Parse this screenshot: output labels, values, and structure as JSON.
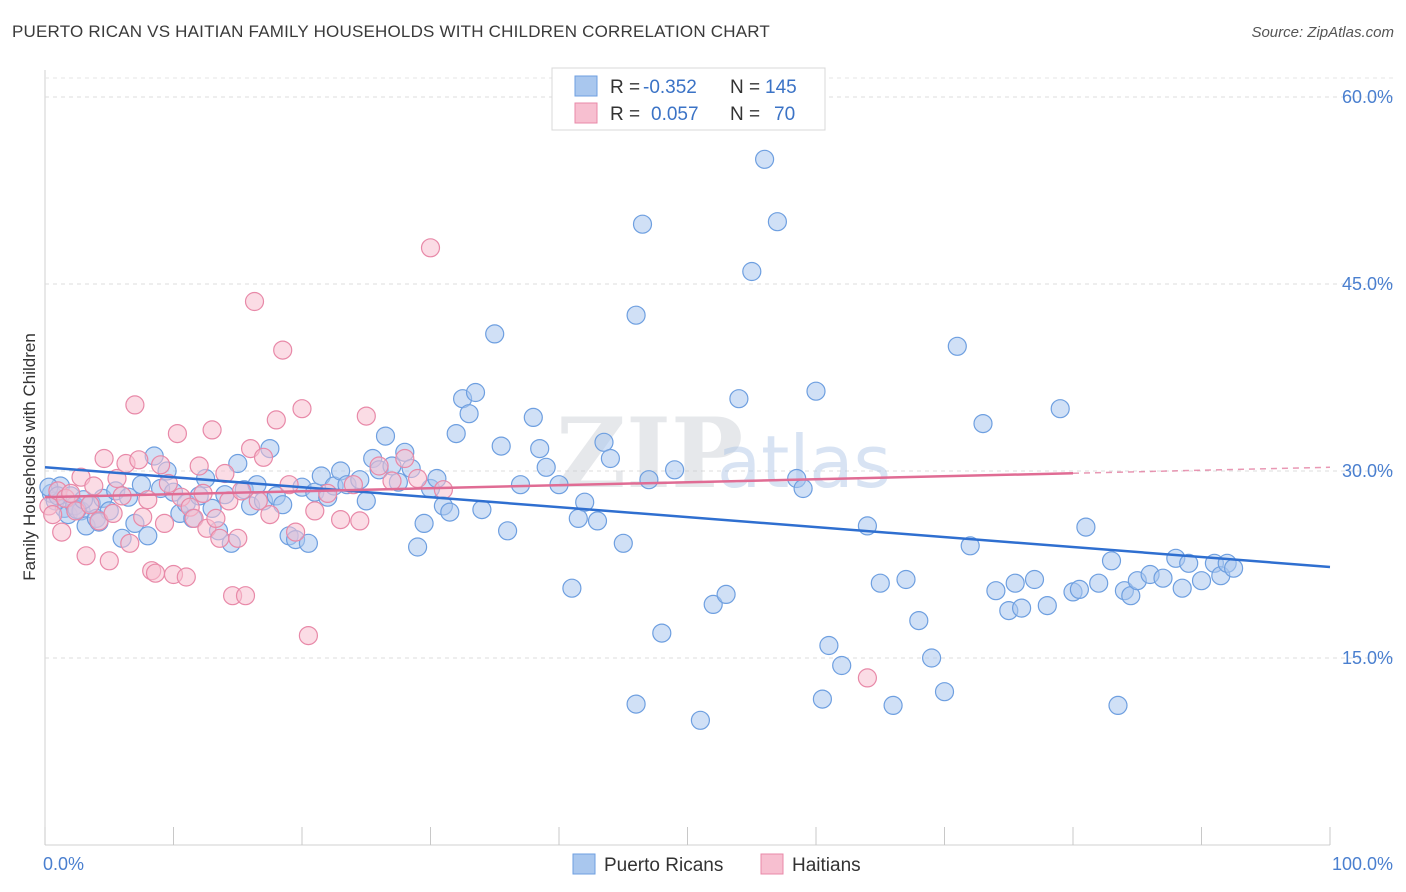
{
  "title": "PUERTO RICAN VS HAITIAN FAMILY HOUSEHOLDS WITH CHILDREN CORRELATION CHART",
  "source": "Source: ZipAtlas.com",
  "watermark": {
    "part1": "ZIP",
    "part2": "atlas"
  },
  "legend_box": {
    "rows": [
      {
        "r_label": "R =",
        "r_value": "-0.352",
        "n_label": "N =",
        "n_value": "145",
        "color": "#a9c7ee",
        "stroke": "#6e9fe0"
      },
      {
        "r_label": "R =",
        "r_value": "0.057",
        "n_label": "N =",
        "n_value": "70",
        "color": "#f7bfd0",
        "stroke": "#e889a8"
      }
    ]
  },
  "bottom_legend": [
    {
      "label": "Puerto Ricans",
      "color": "#a9c7ee",
      "stroke": "#6e9fe0"
    },
    {
      "label": "Haitians",
      "color": "#f7bfd0",
      "stroke": "#e889a8"
    }
  ],
  "chart_data": {
    "type": "scatter",
    "xlabel": "",
    "ylabel": "Family Households with Children",
    "xlim": [
      0,
      100
    ],
    "ylim": [
      0,
      60
    ],
    "x_tick_labels": [
      "0.0%",
      "100.0%"
    ],
    "y_ticks": [
      15,
      30,
      45,
      60
    ],
    "y_tick_labels": [
      "15.0%",
      "30.0%",
      "45.0%",
      "60.0%"
    ],
    "grid": true,
    "series": [
      {
        "name": "Puerto Ricans",
        "color": "#6e9fe0",
        "fill": "#a9c7ee",
        "trend": {
          "x": [
            0,
            100
          ],
          "y": [
            30.3,
            22.3
          ],
          "color": "#2f6fd0",
          "dashed_from": null
        },
        "points": [
          [
            0.5,
            28.2
          ],
          [
            0.8,
            27.6
          ],
          [
            1.2,
            28.8
          ],
          [
            1.5,
            27.0
          ],
          [
            1.8,
            26.5
          ],
          [
            2.0,
            28.0
          ],
          [
            2.3,
            27.2
          ],
          [
            2.8,
            26.8
          ],
          [
            3.2,
            25.6
          ],
          [
            3.6,
            27.4
          ],
          [
            4.0,
            26.2
          ],
          [
            4.5,
            27.8
          ],
          [
            5.0,
            26.8
          ],
          [
            5.5,
            28.4
          ],
          [
            6.0,
            24.6
          ],
          [
            6.5,
            27.9
          ],
          [
            7.0,
            25.8
          ],
          [
            7.5,
            28.9
          ],
          [
            8.0,
            24.8
          ],
          [
            8.5,
            31.2
          ],
          [
            9.0,
            28.6
          ],
          [
            9.5,
            30.0
          ],
          [
            10.0,
            28.3
          ],
          [
            10.5,
            26.6
          ],
          [
            11.0,
            27.4
          ],
          [
            11.5,
            26.2
          ],
          [
            12.0,
            28.0
          ],
          [
            12.5,
            29.4
          ],
          [
            13.0,
            27.0
          ],
          [
            13.5,
            25.2
          ],
          [
            14.0,
            28.1
          ],
          [
            14.5,
            24.2
          ],
          [
            15.0,
            30.6
          ],
          [
            15.5,
            28.5
          ],
          [
            16.0,
            27.2
          ],
          [
            16.5,
            28.9
          ],
          [
            17.0,
            27.6
          ],
          [
            17.5,
            31.8
          ],
          [
            18.0,
            28.0
          ],
          [
            18.5,
            27.3
          ],
          [
            19.0,
            24.8
          ],
          [
            19.5,
            24.5
          ],
          [
            20.0,
            28.7
          ],
          [
            20.5,
            24.2
          ],
          [
            21.0,
            28.3
          ],
          [
            21.5,
            29.6
          ],
          [
            22.0,
            27.9
          ],
          [
            22.5,
            28.8
          ],
          [
            23.0,
            30.0
          ],
          [
            23.5,
            28.9
          ],
          [
            24.5,
            29.3
          ],
          [
            25.0,
            27.6
          ],
          [
            25.5,
            31.0
          ],
          [
            26.0,
            30.1
          ],
          [
            26.5,
            32.8
          ],
          [
            27.0,
            30.4
          ],
          [
            27.5,
            29.1
          ],
          [
            28.0,
            31.5
          ],
          [
            28.5,
            30.2
          ],
          [
            29.0,
            23.9
          ],
          [
            29.5,
            25.8
          ],
          [
            30.0,
            28.6
          ],
          [
            30.5,
            29.4
          ],
          [
            31.0,
            27.2
          ],
          [
            31.5,
            26.7
          ],
          [
            32.0,
            33.0
          ],
          [
            32.5,
            35.8
          ],
          [
            33.0,
            34.6
          ],
          [
            33.5,
            36.3
          ],
          [
            34.0,
            26.9
          ],
          [
            35.0,
            41.0
          ],
          [
            35.5,
            32.0
          ],
          [
            36.0,
            25.2
          ],
          [
            37.0,
            28.9
          ],
          [
            38.0,
            34.3
          ],
          [
            38.5,
            31.8
          ],
          [
            39.0,
            30.3
          ],
          [
            40.0,
            28.9
          ],
          [
            41.0,
            20.6
          ],
          [
            41.5,
            26.2
          ],
          [
            42.0,
            27.5
          ],
          [
            43.0,
            26.0
          ],
          [
            43.5,
            32.3
          ],
          [
            44.0,
            31.0
          ],
          [
            45.0,
            24.2
          ],
          [
            46.0,
            42.5
          ],
          [
            46.5,
            49.8
          ],
          [
            47.0,
            29.3
          ],
          [
            48.0,
            17.0
          ],
          [
            49.0,
            30.1
          ],
          [
            51.0,
            10.0
          ],
          [
            52.0,
            19.3
          ],
          [
            53.0,
            20.1
          ],
          [
            54.0,
            35.8
          ],
          [
            55.0,
            46.0
          ],
          [
            56.0,
            55.0
          ],
          [
            57.0,
            50.0
          ],
          [
            58.5,
            29.4
          ],
          [
            59.0,
            28.6
          ],
          [
            60.0,
            36.4
          ],
          [
            61.0,
            16.0
          ],
          [
            62.0,
            14.4
          ],
          [
            64.0,
            25.6
          ],
          [
            65.0,
            21.0
          ],
          [
            66.0,
            11.2
          ],
          [
            67.0,
            21.3
          ],
          [
            68.0,
            18.0
          ],
          [
            69.0,
            15.0
          ],
          [
            70.0,
            12.3
          ],
          [
            71.0,
            40.0
          ],
          [
            72.0,
            24.0
          ],
          [
            73.0,
            33.8
          ],
          [
            74.0,
            20.4
          ],
          [
            75.0,
            18.8
          ],
          [
            75.5,
            21.0
          ],
          [
            76.0,
            19.0
          ],
          [
            77.0,
            21.3
          ],
          [
            78.0,
            19.2
          ],
          [
            79.0,
            35.0
          ],
          [
            80.0,
            20.3
          ],
          [
            80.5,
            20.5
          ],
          [
            81.0,
            25.5
          ],
          [
            82.0,
            21.0
          ],
          [
            83.0,
            22.8
          ],
          [
            84.0,
            20.4
          ],
          [
            84.5,
            20.0
          ],
          [
            85.0,
            21.2
          ],
          [
            86.0,
            21.7
          ],
          [
            87.0,
            21.4
          ],
          [
            88.0,
            23.0
          ],
          [
            88.5,
            20.6
          ],
          [
            89.0,
            22.6
          ],
          [
            90.0,
            21.2
          ],
          [
            91.0,
            22.6
          ],
          [
            91.5,
            21.6
          ],
          [
            92.0,
            22.6
          ],
          [
            92.5,
            22.2
          ],
          [
            46.0,
            11.3
          ],
          [
            60.5,
            11.7
          ],
          [
            83.5,
            11.2
          ],
          [
            0.3,
            28.7
          ],
          [
            1.0,
            28.0
          ],
          [
            2.5,
            26.9
          ],
          [
            3.0,
            27.7
          ],
          [
            4.2,
            25.9
          ]
        ]
      },
      {
        "name": "Haitians",
        "color": "#e889a8",
        "fill": "#f7bfd0",
        "trend": {
          "x": [
            0,
            100
          ],
          "y": [
            27.9,
            30.3
          ],
          "color": "#e06c94",
          "dashed_from": 80
        },
        "points": [
          [
            0.3,
            27.2
          ],
          [
            0.6,
            26.5
          ],
          [
            1.0,
            28.4
          ],
          [
            1.3,
            25.1
          ],
          [
            1.6,
            27.8
          ],
          [
            2.0,
            28.2
          ],
          [
            2.4,
            26.8
          ],
          [
            2.8,
            29.5
          ],
          [
            3.2,
            23.2
          ],
          [
            3.5,
            27.3
          ],
          [
            3.8,
            28.8
          ],
          [
            4.2,
            26.0
          ],
          [
            4.6,
            31.0
          ],
          [
            5.0,
            22.8
          ],
          [
            5.3,
            26.6
          ],
          [
            5.6,
            29.4
          ],
          [
            6.0,
            28.0
          ],
          [
            6.3,
            30.6
          ],
          [
            6.6,
            24.2
          ],
          [
            7.0,
            35.3
          ],
          [
            7.3,
            30.9
          ],
          [
            7.6,
            26.3
          ],
          [
            8.0,
            27.7
          ],
          [
            8.3,
            22.0
          ],
          [
            8.6,
            21.8
          ],
          [
            9.0,
            30.5
          ],
          [
            9.3,
            25.8
          ],
          [
            9.6,
            29.0
          ],
          [
            10.0,
            21.7
          ],
          [
            10.3,
            33.0
          ],
          [
            10.6,
            27.9
          ],
          [
            11.0,
            21.5
          ],
          [
            11.3,
            27.1
          ],
          [
            11.6,
            26.2
          ],
          [
            12.0,
            30.4
          ],
          [
            12.3,
            28.2
          ],
          [
            12.6,
            25.4
          ],
          [
            13.0,
            33.3
          ],
          [
            13.3,
            26.2
          ],
          [
            13.6,
            24.6
          ],
          [
            14.0,
            29.8
          ],
          [
            14.3,
            27.6
          ],
          [
            14.6,
            20.0
          ],
          [
            15.0,
            24.6
          ],
          [
            15.3,
            28.4
          ],
          [
            15.6,
            20.0
          ],
          [
            16.0,
            31.8
          ],
          [
            16.3,
            43.6
          ],
          [
            16.6,
            27.6
          ],
          [
            17.0,
            31.1
          ],
          [
            17.5,
            26.5
          ],
          [
            18.0,
            34.1
          ],
          [
            18.5,
            39.7
          ],
          [
            19.0,
            28.9
          ],
          [
            19.5,
            25.1
          ],
          [
            20.0,
            35.0
          ],
          [
            20.5,
            16.8
          ],
          [
            21.0,
            26.8
          ],
          [
            22.0,
            28.2
          ],
          [
            23.0,
            26.1
          ],
          [
            24.0,
            28.9
          ],
          [
            24.5,
            26.0
          ],
          [
            25.0,
            34.4
          ],
          [
            26.0,
            30.4
          ],
          [
            27.0,
            29.2
          ],
          [
            28.0,
            31.0
          ],
          [
            29.0,
            29.4
          ],
          [
            30.0,
            47.9
          ],
          [
            31.0,
            28.5
          ],
          [
            64.0,
            13.4
          ]
        ]
      }
    ]
  }
}
